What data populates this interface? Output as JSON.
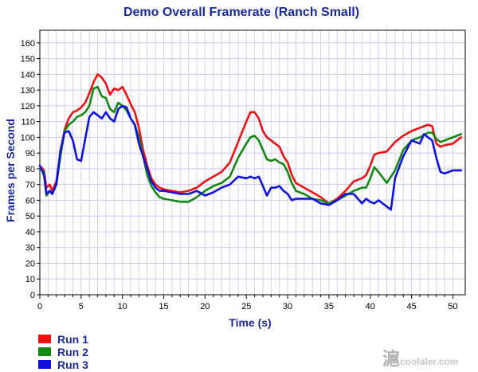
{
  "chart_data": {
    "type": "line",
    "title": "Demo Overall Framerate (Ranch Small)",
    "xlabel": "Time (s)",
    "ylabel": "Frames per Second",
    "xlim": [
      0,
      51.5
    ],
    "ylim": [
      0,
      168
    ],
    "x_ticks": [
      0,
      5,
      10,
      15,
      20,
      25,
      30,
      35,
      40,
      45,
      50
    ],
    "y_ticks": [
      0,
      10,
      20,
      30,
      40,
      50,
      60,
      70,
      80,
      90,
      100,
      110,
      120,
      130,
      140,
      150,
      160
    ],
    "grid": true,
    "legend_position": "bottom-left",
    "series": [
      {
        "name": "Run 1",
        "color": "#ee1111",
        "points": [
          [
            0,
            82
          ],
          [
            0.5,
            79
          ],
          [
            0.8,
            68
          ],
          [
            1.2,
            70
          ],
          [
            1.5,
            66
          ],
          [
            2,
            72
          ],
          [
            2.5,
            90
          ],
          [
            3,
            105
          ],
          [
            3.5,
            112
          ],
          [
            4,
            116
          ],
          [
            4.5,
            117
          ],
          [
            5,
            119
          ],
          [
            5.5,
            122
          ],
          [
            6,
            128
          ],
          [
            6.5,
            135
          ],
          [
            7,
            140
          ],
          [
            7.5,
            138
          ],
          [
            8,
            134
          ],
          [
            8.5,
            127
          ],
          [
            9,
            131
          ],
          [
            9.5,
            130
          ],
          [
            10,
            132
          ],
          [
            10.5,
            127
          ],
          [
            11,
            121
          ],
          [
            11.5,
            116
          ],
          [
            12,
            106
          ],
          [
            12.5,
            92
          ],
          [
            13,
            82
          ],
          [
            13.5,
            74
          ],
          [
            14,
            70
          ],
          [
            14.5,
            68
          ],
          [
            15,
            67
          ],
          [
            16,
            66
          ],
          [
            17,
            65
          ],
          [
            18,
            66
          ],
          [
            19,
            68
          ],
          [
            20,
            72
          ],
          [
            21,
            75
          ],
          [
            22,
            78
          ],
          [
            23,
            84
          ],
          [
            24,
            97
          ],
          [
            25,
            110
          ],
          [
            25.5,
            116
          ],
          [
            26,
            116
          ],
          [
            26.5,
            112
          ],
          [
            27,
            104
          ],
          [
            27.5,
            100
          ],
          [
            28,
            98
          ],
          [
            28.5,
            96
          ],
          [
            29,
            94
          ],
          [
            29.5,
            88
          ],
          [
            30,
            84
          ],
          [
            30.5,
            76
          ],
          [
            31,
            71
          ],
          [
            32,
            68
          ],
          [
            33,
            65
          ],
          [
            34,
            62
          ],
          [
            35,
            58
          ],
          [
            36,
            61
          ],
          [
            37,
            66
          ],
          [
            38,
            72
          ],
          [
            39,
            74
          ],
          [
            39.5,
            76
          ],
          [
            40,
            82
          ],
          [
            40.5,
            89
          ],
          [
            41,
            90
          ],
          [
            42,
            91
          ],
          [
            43,
            97
          ],
          [
            44,
            101
          ],
          [
            45,
            104
          ],
          [
            46,
            106
          ],
          [
            47,
            108
          ],
          [
            47.5,
            107
          ],
          [
            48,
            96
          ],
          [
            48.5,
            94
          ],
          [
            49,
            95
          ],
          [
            50,
            96
          ],
          [
            50.5,
            98
          ],
          [
            51,
            100
          ]
        ]
      },
      {
        "name": "Run 2",
        "color": "#138813",
        "points": [
          [
            0,
            80
          ],
          [
            0.5,
            78
          ],
          [
            0.8,
            63
          ],
          [
            1.2,
            66
          ],
          [
            1.5,
            64
          ],
          [
            2,
            70
          ],
          [
            2.5,
            88
          ],
          [
            3,
            104
          ],
          [
            3.5,
            108
          ],
          [
            4,
            110
          ],
          [
            4.5,
            113
          ],
          [
            5,
            114
          ],
          [
            5.5,
            116
          ],
          [
            6,
            120
          ],
          [
            6.5,
            131
          ],
          [
            7,
            132
          ],
          [
            7.5,
            126
          ],
          [
            8,
            125
          ],
          [
            8.5,
            118
          ],
          [
            9,
            116
          ],
          [
            9.5,
            122
          ],
          [
            10,
            120
          ],
          [
            10.5,
            117
          ],
          [
            11,
            112
          ],
          [
            11.5,
            108
          ],
          [
            12,
            100
          ],
          [
            12.5,
            88
          ],
          [
            13,
            76
          ],
          [
            13.5,
            69
          ],
          [
            14,
            65
          ],
          [
            14.5,
            62
          ],
          [
            15,
            61
          ],
          [
            16,
            60
          ],
          [
            17,
            59
          ],
          [
            18,
            59
          ],
          [
            19,
            62
          ],
          [
            20,
            66
          ],
          [
            21,
            69
          ],
          [
            22,
            71
          ],
          [
            23,
            75
          ],
          [
            24,
            87
          ],
          [
            25,
            96
          ],
          [
            25.5,
            100
          ],
          [
            26,
            101
          ],
          [
            26.5,
            98
          ],
          [
            27,
            92
          ],
          [
            27.5,
            86
          ],
          [
            28,
            85
          ],
          [
            28.5,
            86
          ],
          [
            29,
            84
          ],
          [
            29.5,
            83
          ],
          [
            30,
            78
          ],
          [
            30.5,
            71
          ],
          [
            31,
            66
          ],
          [
            32,
            64
          ],
          [
            33,
            61
          ],
          [
            34,
            60
          ],
          [
            35,
            58
          ],
          [
            36,
            60
          ],
          [
            37,
            63
          ],
          [
            38,
            66
          ],
          [
            39,
            68
          ],
          [
            39.5,
            68
          ],
          [
            40,
            74
          ],
          [
            40.5,
            81
          ],
          [
            41,
            78
          ],
          [
            42,
            71
          ],
          [
            43,
            79
          ],
          [
            44,
            92
          ],
          [
            45,
            98
          ],
          [
            46,
            100
          ],
          [
            47,
            103
          ],
          [
            47.5,
            103
          ],
          [
            48,
            99
          ],
          [
            48.5,
            97
          ],
          [
            49,
            98
          ],
          [
            50,
            100
          ],
          [
            50.5,
            101
          ],
          [
            51,
            102
          ]
        ]
      },
      {
        "name": "Run 3",
        "color": "#1111dd",
        "points": [
          [
            0,
            82
          ],
          [
            0.5,
            76
          ],
          [
            0.8,
            64
          ],
          [
            1.2,
            66
          ],
          [
            1.5,
            64
          ],
          [
            2,
            70
          ],
          [
            2.5,
            92
          ],
          [
            3,
            103
          ],
          [
            3.5,
            104
          ],
          [
            4,
            98
          ],
          [
            4.5,
            86
          ],
          [
            5,
            85
          ],
          [
            5.5,
            99
          ],
          [
            6,
            113
          ],
          [
            6.5,
            116
          ],
          [
            7,
            114
          ],
          [
            7.5,
            112
          ],
          [
            8,
            116
          ],
          [
            8.5,
            112
          ],
          [
            9,
            110
          ],
          [
            9.5,
            118
          ],
          [
            10,
            120
          ],
          [
            10.5,
            119
          ],
          [
            11,
            112
          ],
          [
            11.5,
            108
          ],
          [
            12,
            96
          ],
          [
            12.5,
            88
          ],
          [
            13,
            80
          ],
          [
            13.5,
            72
          ],
          [
            14,
            68
          ],
          [
            14.5,
            66
          ],
          [
            15,
            66
          ],
          [
            16,
            65
          ],
          [
            17,
            64
          ],
          [
            18,
            64
          ],
          [
            19,
            66
          ],
          [
            20,
            63
          ],
          [
            21,
            65
          ],
          [
            22,
            68
          ],
          [
            23,
            70
          ],
          [
            24,
            75
          ],
          [
            25,
            74
          ],
          [
            25.5,
            75
          ],
          [
            26,
            74
          ],
          [
            26.5,
            75
          ],
          [
            27,
            69
          ],
          [
            27.5,
            63
          ],
          [
            28,
            68
          ],
          [
            28.5,
            68
          ],
          [
            29,
            69
          ],
          [
            29.5,
            66
          ],
          [
            30,
            64
          ],
          [
            30.5,
            60
          ],
          [
            31,
            61
          ],
          [
            32,
            61
          ],
          [
            33,
            61
          ],
          [
            34,
            58
          ],
          [
            35,
            57
          ],
          [
            36,
            60
          ],
          [
            37,
            64
          ],
          [
            38,
            64
          ],
          [
            39,
            58
          ],
          [
            39.5,
            61
          ],
          [
            40,
            59
          ],
          [
            40.5,
            58
          ],
          [
            41,
            60
          ],
          [
            42,
            56
          ],
          [
            42.5,
            54
          ],
          [
            43,
            74
          ],
          [
            44,
            88
          ],
          [
            45,
            98
          ],
          [
            46,
            96
          ],
          [
            46.5,
            102
          ],
          [
            47,
            100
          ],
          [
            47.5,
            98
          ],
          [
            48,
            87
          ],
          [
            48.5,
            78
          ],
          [
            49,
            77
          ],
          [
            50,
            79
          ],
          [
            50.5,
            79
          ],
          [
            51,
            79
          ]
        ]
      }
    ]
  },
  "watermark": {
    "glyph": "滬",
    "text": "coolaler.com"
  }
}
